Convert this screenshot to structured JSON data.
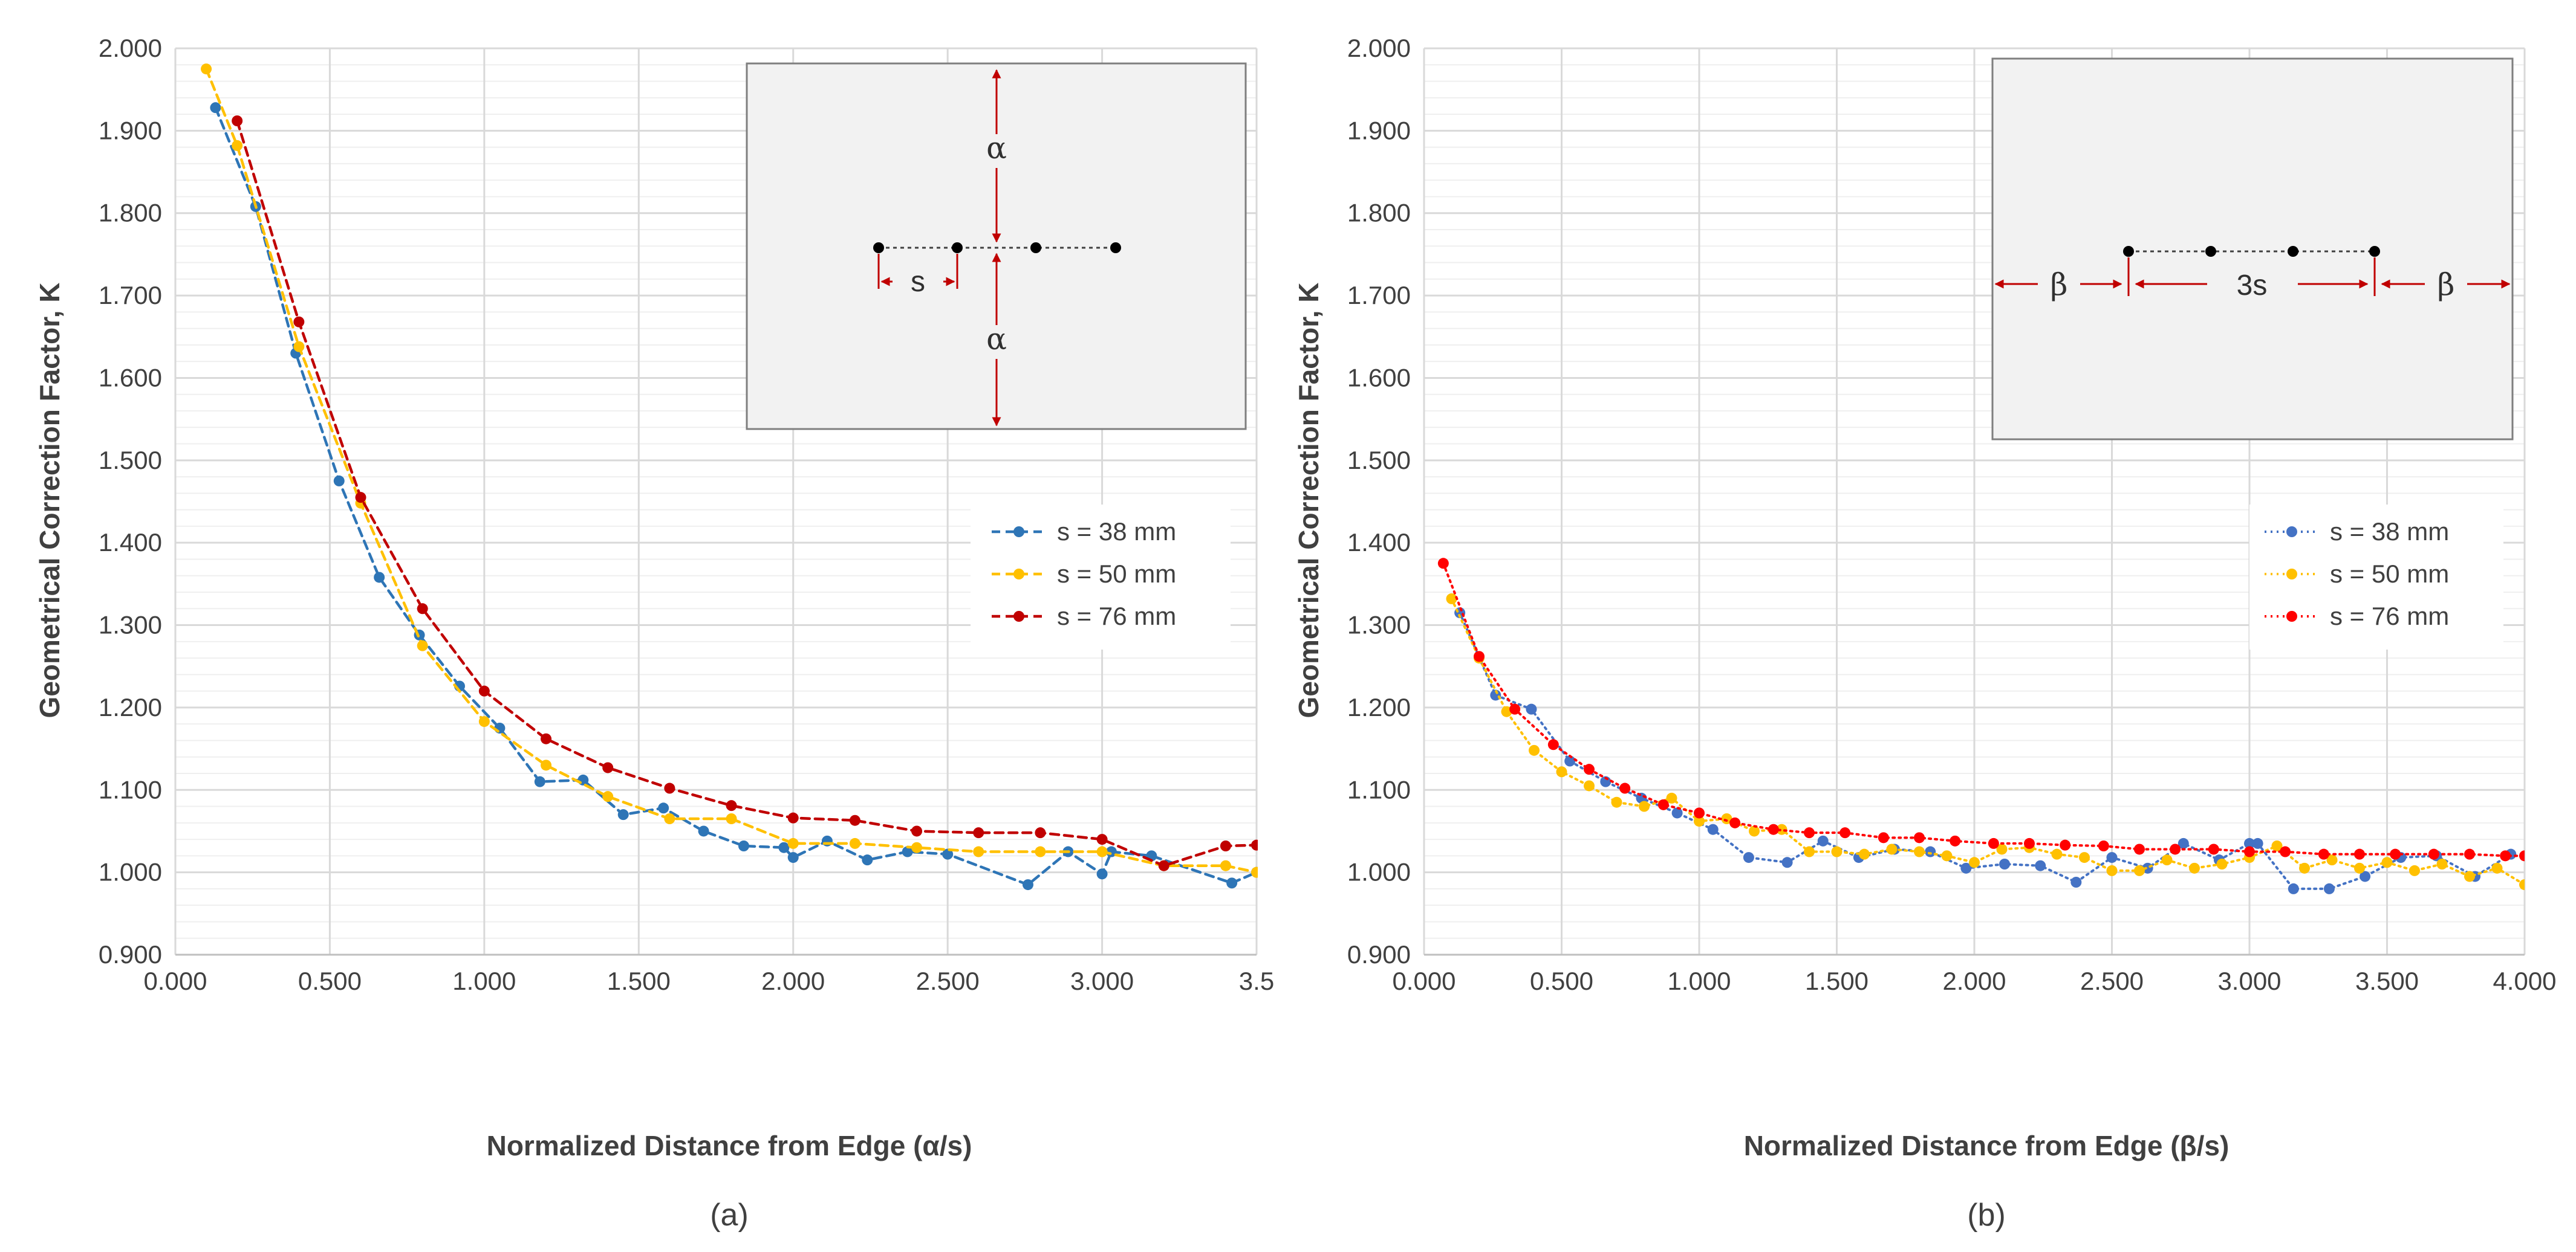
{
  "colors": {
    "blue": "#2E75B6",
    "yellow": "#FFC000",
    "red": "#C00000",
    "blue_b": "#4472C4",
    "red_b": "#FF0000",
    "arrow": "#C00000",
    "grid": "#D9D9D9",
    "inset_bg": "#F2F2F2"
  },
  "chart_data": [
    {
      "type": "line",
      "caption": "(a)",
      "xlabel": "Normalized Distance from Edge (α/s)",
      "ylabel": "Geometrical Correction Factor, K",
      "xlim": [
        0,
        3.5
      ],
      "ylim": [
        0.9,
        2.0
      ],
      "x_ticks": [
        "0.000",
        "0.500",
        "1.000",
        "1.500",
        "2.000",
        "2.500",
        "3.000",
        "3.5"
      ],
      "y_ticks": [
        "0.900",
        "1.000",
        "1.100",
        "1.200",
        "1.300",
        "1.400",
        "1.500",
        "1.600",
        "1.700",
        "1.800",
        "1.900",
        "2.000"
      ],
      "line_style": "dashed",
      "grid": true,
      "legend": "center-right",
      "series": [
        {
          "name": "s = 38 mm",
          "color_key": "blue",
          "x": [
            0.13,
            0.26,
            0.39,
            0.53,
            0.66,
            0.79,
            0.92,
            1.05,
            1.18,
            1.32,
            1.45,
            1.58,
            1.71,
            1.84,
            1.97,
            2.0,
            2.11,
            2.24,
            2.37,
            2.5,
            2.76,
            2.89,
            3.0,
            3.03,
            3.16,
            3.42,
            3.5
          ],
          "y": [
            1.928,
            1.808,
            1.63,
            1.475,
            1.358,
            1.288,
            1.226,
            1.175,
            1.11,
            1.112,
            1.07,
            1.078,
            1.05,
            1.032,
            1.03,
            1.018,
            1.038,
            1.015,
            1.025,
            1.022,
            0.985,
            1.025,
            0.998,
            1.025,
            1.02,
            0.987,
            1.0
          ]
        },
        {
          "name": "s = 50 mm",
          "color_key": "yellow",
          "x": [
            0.1,
            0.2,
            0.4,
            0.6,
            0.8,
            1.0,
            1.2,
            1.4,
            1.6,
            1.8,
            2.0,
            2.2,
            2.4,
            2.6,
            2.8,
            3.0,
            3.2,
            3.4,
            3.5
          ],
          "y": [
            1.975,
            1.882,
            1.638,
            1.448,
            1.275,
            1.183,
            1.13,
            1.092,
            1.065,
            1.065,
            1.035,
            1.035,
            1.03,
            1.025,
            1.025,
            1.025,
            1.008,
            1.008,
            1.0
          ]
        },
        {
          "name": "s = 76 mm",
          "color_key": "red",
          "x": [
            0.2,
            0.4,
            0.6,
            0.8,
            1.0,
            1.2,
            1.4,
            1.6,
            1.8,
            2.0,
            2.2,
            2.4,
            2.6,
            2.8,
            3.0,
            3.2,
            3.4,
            3.5
          ],
          "y": [
            1.912,
            1.668,
            1.455,
            1.32,
            1.22,
            1.162,
            1.127,
            1.102,
            1.081,
            1.066,
            1.063,
            1.05,
            1.048,
            1.048,
            1.04,
            1.008,
            1.032,
            1.033
          ]
        }
      ],
      "inset": {
        "labels": {
          "alpha_top": "α",
          "alpha_bottom": "α",
          "s": "s"
        }
      }
    },
    {
      "type": "line",
      "caption": "(b)",
      "xlabel": "Normalized Distance from Edge (β/s)",
      "ylabel": "Geometrical Correction Factor, K",
      "xlim": [
        0,
        4.0
      ],
      "ylim": [
        0.9,
        2.0
      ],
      "x_ticks": [
        "0.000",
        "0.500",
        "1.000",
        "1.500",
        "2.000",
        "2.500",
        "3.000",
        "3.500",
        "4.000"
      ],
      "y_ticks": [
        "0.900",
        "1.000",
        "1.100",
        "1.200",
        "1.300",
        "1.400",
        "1.500",
        "1.600",
        "1.700",
        "1.800",
        "1.900",
        "2.000"
      ],
      "line_style": "dotted",
      "grid": true,
      "legend": "center-right",
      "series": [
        {
          "name": "s = 38 mm",
          "color_key": "blue_b",
          "x": [
            0.13,
            0.26,
            0.39,
            0.53,
            0.66,
            0.79,
            0.92,
            1.05,
            1.18,
            1.32,
            1.45,
            1.58,
            1.71,
            1.84,
            1.97,
            2.11,
            2.24,
            2.37,
            2.5,
            2.63,
            2.76,
            2.89,
            3.0,
            3.03,
            3.16,
            3.29,
            3.42,
            3.55,
            3.68,
            3.82,
            3.95
          ],
          "y": [
            1.315,
            1.215,
            1.198,
            1.135,
            1.11,
            1.09,
            1.072,
            1.052,
            1.018,
            1.012,
            1.038,
            1.018,
            1.028,
            1.025,
            1.005,
            1.01,
            1.008,
            0.988,
            1.018,
            1.005,
            1.035,
            1.015,
            1.035,
            1.035,
            0.98,
            0.98,
            0.995,
            1.018,
            1.02,
            0.995,
            1.022
          ]
        },
        {
          "name": "s = 50 mm",
          "color_key": "yellow",
          "x": [
            0.1,
            0.2,
            0.3,
            0.4,
            0.5,
            0.6,
            0.7,
            0.8,
            0.9,
            1.0,
            1.1,
            1.2,
            1.3,
            1.4,
            1.5,
            1.6,
            1.7,
            1.8,
            1.9,
            2.0,
            2.1,
            2.2,
            2.3,
            2.4,
            2.5,
            2.6,
            2.7,
            2.8,
            2.9,
            3.0,
            3.1,
            3.2,
            3.3,
            3.4,
            3.5,
            3.6,
            3.7,
            3.8,
            3.9,
            4.0
          ],
          "y": [
            1.332,
            1.26,
            1.195,
            1.148,
            1.122,
            1.105,
            1.085,
            1.08,
            1.09,
            1.062,
            1.065,
            1.05,
            1.052,
            1.025,
            1.025,
            1.022,
            1.028,
            1.025,
            1.02,
            1.012,
            1.028,
            1.03,
            1.022,
            1.018,
            1.002,
            1.002,
            1.015,
            1.005,
            1.01,
            1.018,
            1.032,
            1.005,
            1.015,
            1.005,
            1.012,
            1.002,
            1.01,
            0.995,
            1.005,
            0.985
          ]
        },
        {
          "name": "s = 76 mm",
          "color_key": "red_b",
          "x": [
            0.07,
            0.2,
            0.33,
            0.47,
            0.6,
            0.73,
            0.87,
            1.0,
            1.13,
            1.27,
            1.4,
            1.53,
            1.67,
            1.8,
            1.93,
            2.07,
            2.2,
            2.33,
            2.47,
            2.6,
            2.73,
            2.87,
            3.0,
            3.13,
            3.27,
            3.4,
            3.53,
            3.67,
            3.8,
            3.93,
            4.0
          ],
          "y": [
            1.375,
            1.262,
            1.198,
            1.155,
            1.125,
            1.102,
            1.082,
            1.072,
            1.06,
            1.052,
            1.048,
            1.048,
            1.042,
            1.042,
            1.038,
            1.035,
            1.035,
            1.033,
            1.032,
            1.028,
            1.028,
            1.028,
            1.025,
            1.025,
            1.022,
            1.022,
            1.022,
            1.022,
            1.022,
            1.02,
            1.02
          ]
        }
      ],
      "inset": {
        "labels": {
          "beta_left": "β",
          "three_s": "3s",
          "beta_right": "β"
        }
      }
    }
  ]
}
